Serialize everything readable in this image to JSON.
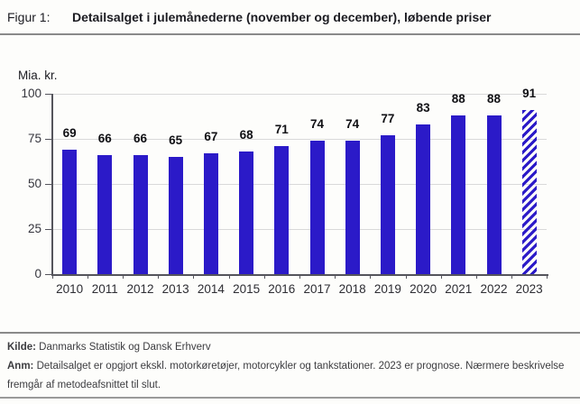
{
  "header": {
    "figure_label": "Figur 1:",
    "title": "Detailsalget i julemånederne (november og december), løbende priser"
  },
  "palette": {
    "bar": "#2B1AC8",
    "grid": "#D9D9D9",
    "axis": "#55555C",
    "rule": "#8A8A8A",
    "rule2": "#9A9A9A",
    "text": "#1C1C22",
    "muted": "#3C3C40"
  },
  "chart_data": {
    "type": "bar",
    "title": "Detailsalget i julemånederne (november og december), løbende priser",
    "unit_label": "Mia. kr.",
    "xlabel": "",
    "ylabel": "Mia. kr.",
    "categories": [
      "2010",
      "2011",
      "2012",
      "2013",
      "2014",
      "2015",
      "2016",
      "2017",
      "2018",
      "2019",
      "2020",
      "2021",
      "2022",
      "2023"
    ],
    "values": [
      69,
      66,
      66,
      65,
      67,
      68,
      71,
      74,
      74,
      77,
      83,
      88,
      88,
      91
    ],
    "forecast_category": "2023",
    "forecast_style": "diagonal-hatch",
    "ylim": [
      0,
      100
    ],
    "yticks": [
      0,
      25,
      50,
      75,
      100
    ],
    "grid": true,
    "legend": "none",
    "bar_color": "#2B1AC8",
    "value_labels_shown": true
  },
  "footer": {
    "source_label": "Kilde:",
    "source_text": "Danmarks Statistik og Dansk Erhverv",
    "note_label": "Anm:",
    "note_text": "Detailsalget er opgjort ekskl. motorkøretøjer, motorcykler og tankstationer. 2023 er prognose. Nærmere beskrivelse fremgår af metodeafsnittet til slut."
  }
}
